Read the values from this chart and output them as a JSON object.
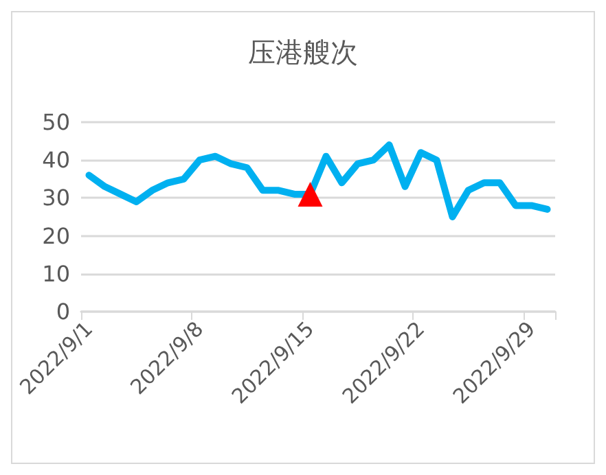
{
  "chart_data": {
    "type": "line",
    "title": "压港艘次",
    "categories": [
      "2022/9/1",
      null,
      null,
      null,
      null,
      null,
      null,
      "2022/9/8",
      null,
      null,
      null,
      null,
      null,
      null,
      "2022/9/15",
      null,
      null,
      null,
      null,
      null,
      null,
      "2022/9/22",
      null,
      null,
      null,
      null,
      null,
      null,
      "2022/9/29",
      null
    ],
    "series": [
      {
        "color": "#00b0f0",
        "marker": "none",
        "line_style": "solid",
        "values": [
          36,
          33,
          31,
          29,
          32,
          34,
          35,
          40,
          41,
          39,
          38,
          32,
          32,
          31,
          31,
          41,
          34,
          39,
          40,
          44,
          33,
          42,
          40,
          25,
          32,
          34,
          34,
          28,
          28,
          27
        ]
      },
      {
        "type": "scatter",
        "color": "#ff0000",
        "marker": "triangle",
        "x": [
          "2022/9/15"
        ],
        "values": [
          31
        ]
      }
    ],
    "ylim": [
      0,
      50
    ],
    "yticks": [
      0,
      10,
      20,
      30,
      40,
      50
    ],
    "grid": "y"
  }
}
